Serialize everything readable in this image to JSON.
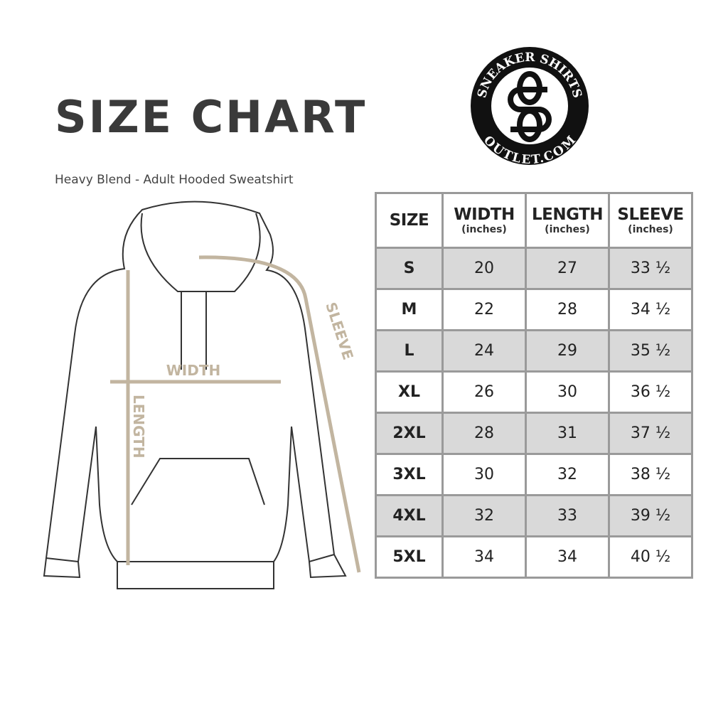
{
  "header": {
    "title": "SIZE CHART",
    "subtitle": "Heavy Blend - Adult Hooded Sweatshirt"
  },
  "logo": {
    "top_text": "SNEAKER SHIRTS",
    "bottom_text": "OUTLET.COM",
    "monogram": "SS"
  },
  "diagram": {
    "labels": {
      "width": "WIDTH",
      "length": "LENGTH",
      "sleeve": "SLEEVE"
    },
    "colors": {
      "measure": "#c2b5a0",
      "outline": "#333333"
    }
  },
  "table": {
    "columns": [
      {
        "label": "SIZE",
        "unit": ""
      },
      {
        "label": "WIDTH",
        "unit": "(inches)"
      },
      {
        "label": "LENGTH",
        "unit": "(inches)"
      },
      {
        "label": "SLEEVE",
        "unit": "(inches)"
      }
    ],
    "rows": [
      [
        "S",
        "20",
        "27",
        "33 ½"
      ],
      [
        "M",
        "22",
        "28",
        "34 ½"
      ],
      [
        "L",
        "24",
        "29",
        "35 ½"
      ],
      [
        "XL",
        "26",
        "30",
        "36 ½"
      ],
      [
        "2XL",
        "28",
        "31",
        "37 ½"
      ],
      [
        "3XL",
        "30",
        "32",
        "38 ½"
      ],
      [
        "4XL",
        "32",
        "33",
        "39 ½"
      ],
      [
        "5XL",
        "34",
        "34",
        "40 ½"
      ]
    ]
  }
}
